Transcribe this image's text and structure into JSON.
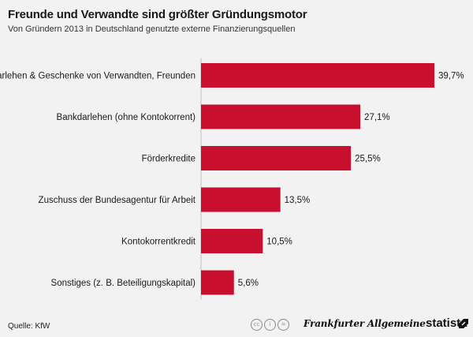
{
  "chart_data": {
    "type": "bar",
    "orientation": "horizontal",
    "title": "Freunde und Verwandte sind größter Gründungsmotor",
    "subtitle": "Von Gründern 2013 in Deutschland genutzte externe Finanzierungsquellen",
    "categories": [
      "Darlehen & Geschenke von Verwandten, Freunden",
      "Bankdarlehen (ohne Kontokorrent)",
      "Förderkredite",
      "Zuschuss der Bundesagentur für Arbeit",
      "Kontokorrentkredit",
      "Sonstiges (z. B. Beteiligungskapital)"
    ],
    "values": [
      39.7,
      27.1,
      25.5,
      13.5,
      10.5,
      5.6
    ],
    "value_labels": [
      "39,7%",
      "27,1%",
      "25,5%",
      "13,5%",
      "10,5%",
      "5,6%"
    ],
    "xlim": [
      0,
      42
    ],
    "bar_color": "#c8102e",
    "grid": false,
    "legend": "none"
  },
  "footer": {
    "source": "Quelle: KfW",
    "faz": "Frankfurter Allgemeine",
    "statista": "statista"
  },
  "colors": {
    "background": "#f2f2f2",
    "bar": "#c8102e",
    "text": "#1a1a1a"
  }
}
